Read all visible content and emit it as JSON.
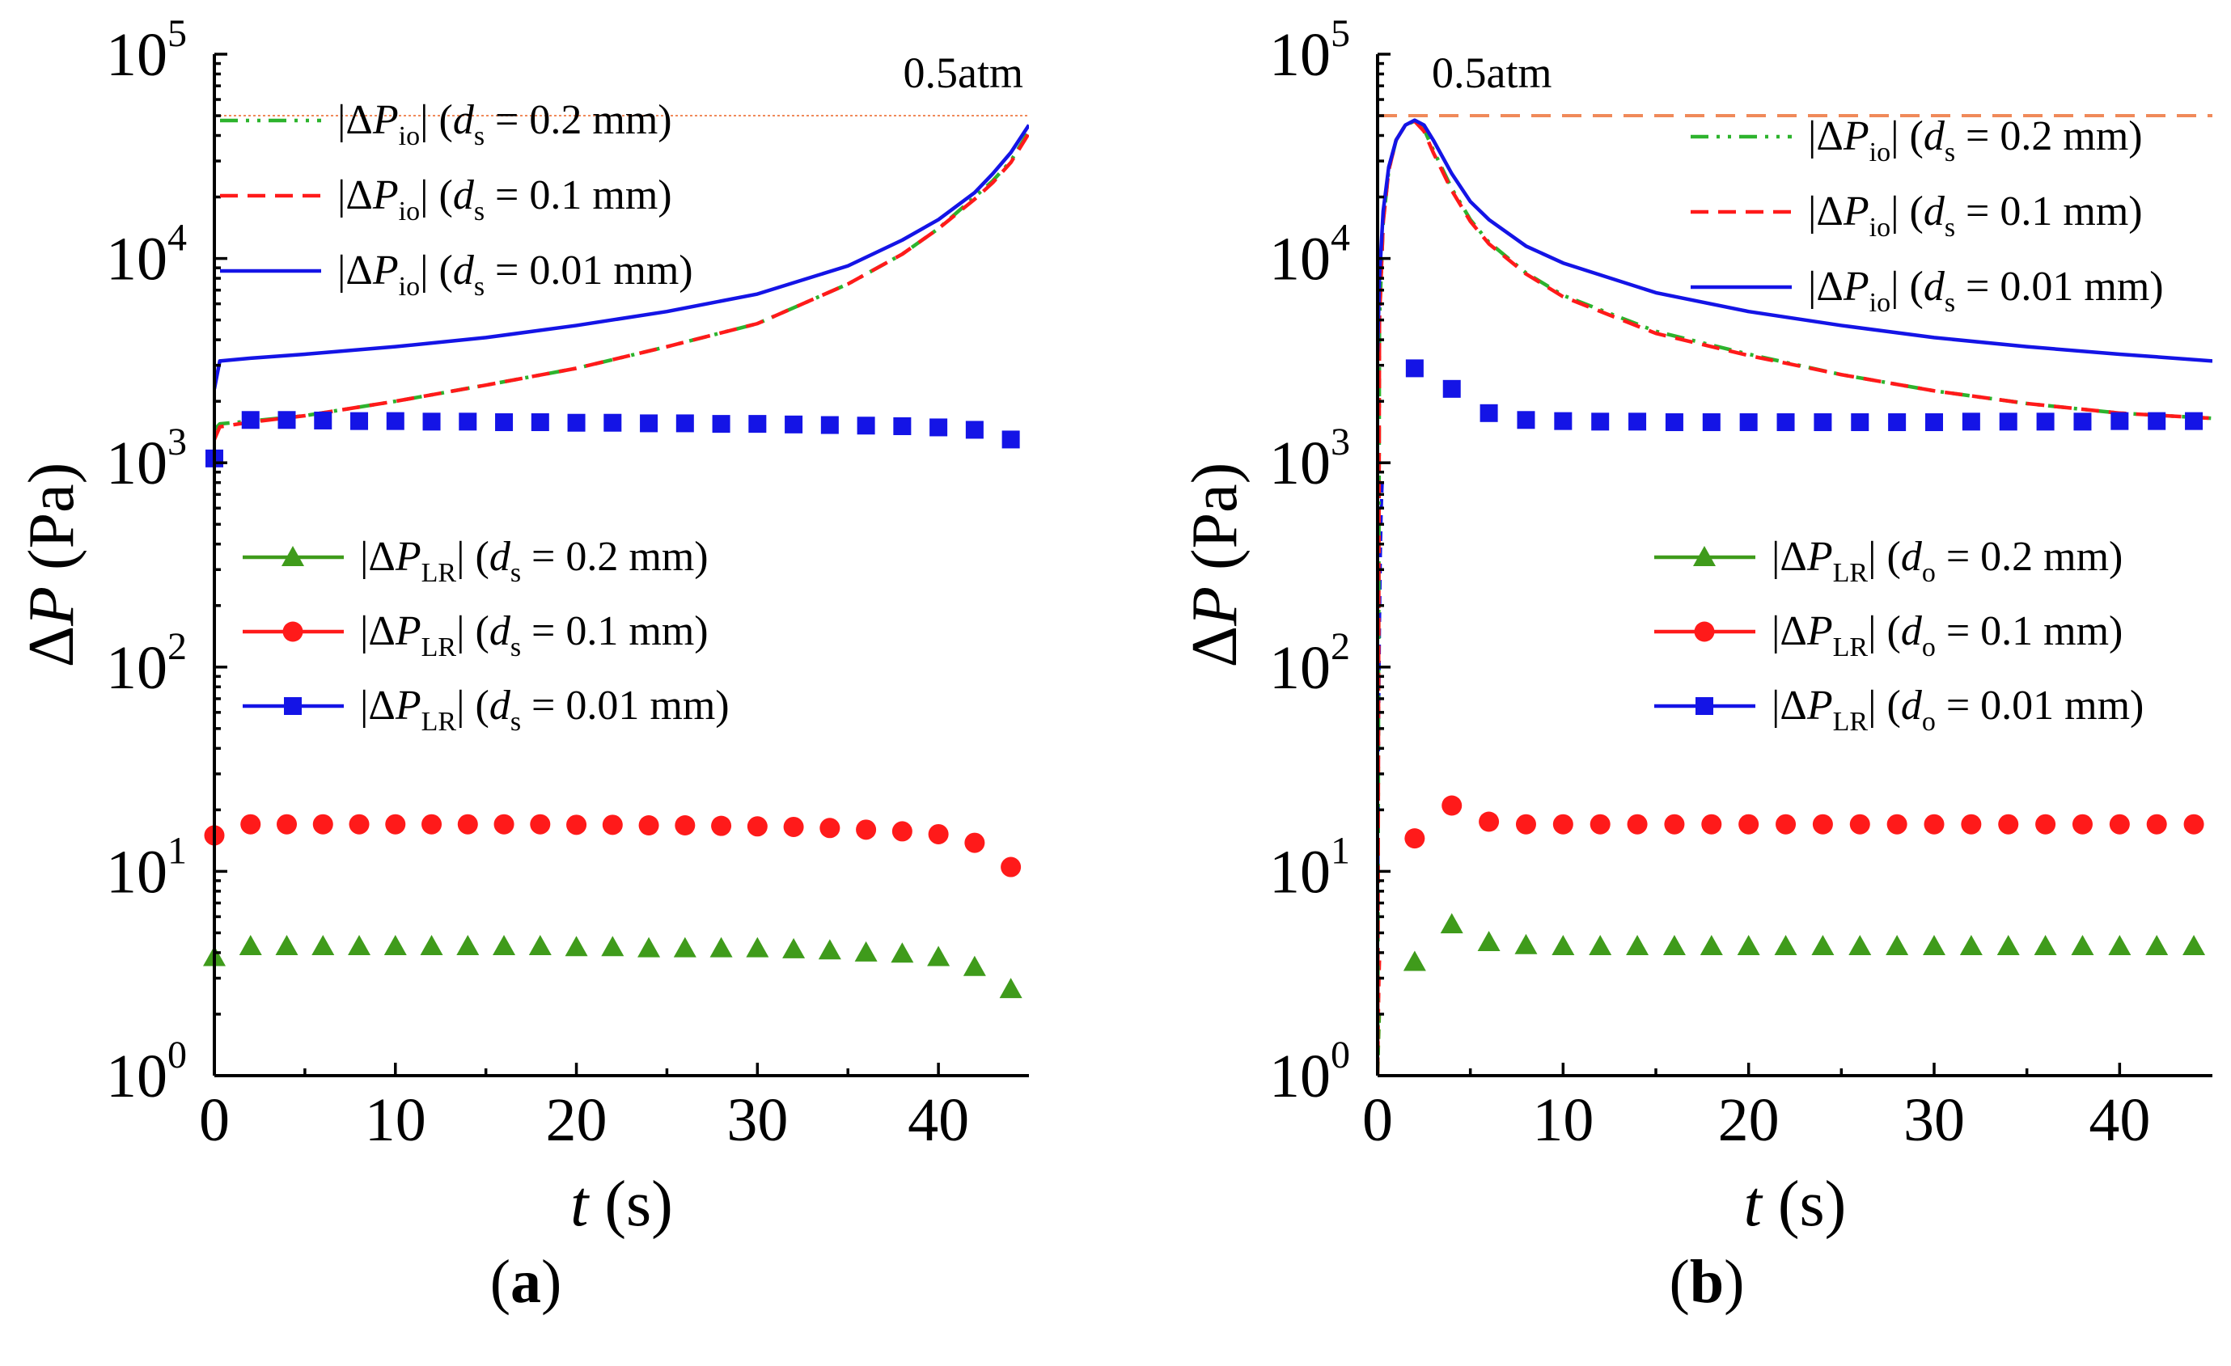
{
  "chart_data": [
    {
      "type": "line",
      "panel_label": "(a)",
      "panel_letter": "a",
      "xlabel": "t (s)",
      "xlabel_var": "t",
      "xlabel_unit": "(s)",
      "ylabel": "ΔP (Pa)",
      "ylabel_var": "ΔP",
      "ylabel_unit": "(Pa)",
      "yscale": "log",
      "xlim": [
        0,
        45
      ],
      "ylim": [
        1,
        100000
      ],
      "x_ticks": [
        0,
        10,
        20,
        30,
        40
      ],
      "x_tick_labels": [
        "0",
        "10",
        "20",
        "30",
        "40"
      ],
      "y_ticks": [
        1,
        10,
        100,
        1000,
        10000,
        100000
      ],
      "y_tick_labels": [
        {
          "base": "10",
          "exp": "0"
        },
        {
          "base": "10",
          "exp": "1"
        },
        {
          "base": "10",
          "exp": "2"
        },
        {
          "base": "10",
          "exp": "3"
        },
        {
          "base": "10",
          "exp": "4"
        },
        {
          "base": "10",
          "exp": "5"
        }
      ],
      "reference_line": {
        "label": "0.5atm",
        "value": 50000,
        "color": "#f08a5a"
      },
      "line_series": [
        {
          "name": "|ΔPio| (ds = 0.2 mm)",
          "sub": "io",
          "dvar": "s",
          "value_text": "0.2 mm",
          "color": "#2db32d",
          "dash": "dashdot",
          "x": [
            0,
            0.3,
            2,
            5,
            10,
            15,
            20,
            25,
            30,
            35,
            38,
            40,
            42,
            43,
            44,
            45
          ],
          "y": [
            1450,
            1550,
            1600,
            1700,
            2000,
            2400,
            2900,
            3700,
            4800,
            7500,
            10500,
            14000,
            20000,
            24000,
            30000,
            42000
          ]
        },
        {
          "name": "|ΔPio| (ds = 0.1 mm)",
          "sub": "io",
          "dvar": "s",
          "value_text": "0.1 mm",
          "color": "#ff1a1a",
          "dash": "dashed",
          "x": [
            0,
            0.3,
            2,
            5,
            10,
            15,
            20,
            25,
            30,
            35,
            38,
            40,
            42,
            43,
            44,
            45
          ],
          "y": [
            1300,
            1500,
            1580,
            1700,
            2000,
            2400,
            2900,
            3700,
            4800,
            7500,
            10500,
            14000,
            19500,
            23500,
            29500,
            41000
          ]
        },
        {
          "name": "|ΔPio| (ds = 0.01 mm)",
          "sub": "io",
          "dvar": "s",
          "value_text": "0.01 mm",
          "color": "#1414e6",
          "dash": "solid",
          "x": [
            0,
            0.3,
            2,
            5,
            10,
            15,
            20,
            25,
            30,
            35,
            38,
            40,
            42,
            43,
            44,
            45
          ],
          "y": [
            2300,
            3150,
            3250,
            3400,
            3700,
            4100,
            4700,
            5500,
            6700,
            9200,
            12300,
            15500,
            21000,
            26000,
            33000,
            45000
          ]
        }
      ],
      "marker_series": [
        {
          "name": "|ΔPLR| (ds = 0.2 mm)",
          "sub": "LR",
          "dvar": "s",
          "value_text": "0.2 mm",
          "color": "#3f9b1b",
          "marker": "triangle",
          "x": [
            0,
            2,
            4,
            6,
            8,
            10,
            12,
            14,
            16,
            18,
            20,
            22,
            24,
            26,
            28,
            30,
            32,
            34,
            36,
            38,
            40,
            42,
            44
          ],
          "y": [
            3.8,
            4.3,
            4.3,
            4.3,
            4.3,
            4.3,
            4.3,
            4.3,
            4.3,
            4.3,
            4.25,
            4.25,
            4.2,
            4.2,
            4.2,
            4.2,
            4.15,
            4.1,
            4.0,
            3.95,
            3.8,
            3.4,
            2.65
          ]
        },
        {
          "name": "|ΔPLR| (ds = 0.1 mm)",
          "sub": "LR",
          "dvar": "s",
          "value_text": "0.1 mm",
          "color": "#ff1a1a",
          "marker": "circle",
          "x": [
            0,
            2,
            4,
            6,
            8,
            10,
            12,
            14,
            16,
            18,
            20,
            22,
            24,
            26,
            28,
            30,
            32,
            34,
            36,
            38,
            40,
            42,
            44
          ],
          "y": [
            15,
            17,
            17,
            17,
            17,
            17,
            17,
            17,
            17,
            17,
            16.9,
            16.9,
            16.8,
            16.8,
            16.7,
            16.6,
            16.5,
            16.3,
            16.0,
            15.7,
            15.2,
            13.8,
            10.5
          ]
        },
        {
          "name": "|ΔPLR| (ds = 0.01 mm)",
          "sub": "LR",
          "dvar": "s",
          "value_text": "0.01 mm",
          "color": "#1414e6",
          "marker": "square",
          "x": [
            0,
            2,
            4,
            6,
            8,
            10,
            12,
            14,
            16,
            18,
            20,
            22,
            24,
            26,
            28,
            30,
            32,
            34,
            36,
            38,
            40,
            42,
            44
          ],
          "y": [
            1050,
            1620,
            1620,
            1610,
            1600,
            1600,
            1590,
            1590,
            1580,
            1580,
            1570,
            1570,
            1560,
            1560,
            1550,
            1550,
            1540,
            1530,
            1520,
            1510,
            1490,
            1450,
            1300
          ]
        }
      ]
    },
    {
      "type": "line",
      "panel_label": "(b)",
      "panel_letter": "b",
      "xlabel": "t (s)",
      "xlabel_var": "t",
      "xlabel_unit": "(s)",
      "ylabel": "ΔP (Pa)",
      "ylabel_var": "ΔP",
      "ylabel_unit": "(Pa)",
      "yscale": "log",
      "xlim": [
        0,
        45
      ],
      "ylim": [
        1,
        100000
      ],
      "x_ticks": [
        0,
        10,
        20,
        30,
        40
      ],
      "x_tick_labels": [
        "0",
        "10",
        "20",
        "30",
        "40"
      ],
      "y_ticks": [
        1,
        10,
        100,
        1000,
        10000,
        100000
      ],
      "y_tick_labels": [
        {
          "base": "10",
          "exp": "0"
        },
        {
          "base": "10",
          "exp": "1"
        },
        {
          "base": "10",
          "exp": "2"
        },
        {
          "base": "10",
          "exp": "3"
        },
        {
          "base": "10",
          "exp": "4"
        },
        {
          "base": "10",
          "exp": "5"
        }
      ],
      "reference_line": {
        "label": "0.5atm",
        "value": 50000,
        "color": "#f08a5a"
      },
      "line_series": [
        {
          "name": "|ΔPio| (ds = 0.2 mm)",
          "sub": "io",
          "dvar": "s",
          "value_text": "0.2 mm",
          "color": "#2db32d",
          "dash": "dashdot",
          "x": [
            0,
            0.1,
            0.3,
            0.6,
            1.0,
            1.5,
            2.0,
            2.5,
            3.0,
            4.0,
            5.0,
            6.0,
            8.0,
            10,
            15,
            20,
            25,
            30,
            35,
            40,
            45
          ],
          "y": [
            1,
            5000,
            15000,
            27000,
            38000,
            45000,
            47000,
            43000,
            34000,
            22000,
            15500,
            12000,
            8500,
            6600,
            4400,
            3400,
            2700,
            2250,
            1950,
            1750,
            1650
          ]
        },
        {
          "name": "|ΔPio| (ds = 0.1 mm)",
          "sub": "io",
          "dvar": "s",
          "value_text": "0.1 mm",
          "color": "#ff1a1a",
          "dash": "dashed",
          "x": [
            0,
            0.1,
            0.3,
            0.6,
            1.0,
            1.5,
            2.0,
            2.5,
            3.0,
            4.0,
            5.0,
            6.0,
            8.0,
            10,
            15,
            20,
            25,
            30,
            35,
            40,
            45
          ],
          "y": [
            1,
            5000,
            15000,
            27000,
            38000,
            45000,
            47000,
            42000,
            33000,
            21500,
            15200,
            11800,
            8400,
            6500,
            4300,
            3350,
            2700,
            2250,
            1950,
            1750,
            1650
          ]
        },
        {
          "name": "|ΔPio| (ds = 0.01 mm)",
          "sub": "io",
          "dvar": "s",
          "value_text": "0.01 mm",
          "color": "#1414e6",
          "dash": "solid",
          "x": [
            0,
            0.1,
            0.3,
            0.6,
            1.0,
            1.5,
            2.0,
            2.5,
            3.0,
            4.0,
            5.0,
            6.0,
            8.0,
            10,
            15,
            20,
            25,
            30,
            35,
            40,
            45
          ],
          "y": [
            3500,
            8000,
            17000,
            28000,
            38000,
            45000,
            47500,
            45000,
            38000,
            26000,
            19000,
            15500,
            11500,
            9500,
            6800,
            5500,
            4700,
            4100,
            3700,
            3400,
            3150
          ]
        }
      ],
      "marker_series": [
        {
          "name": "|ΔPLR| (do = 0.2 mm)",
          "sub": "LR",
          "dvar": "o",
          "value_text": "0.2 mm",
          "color": "#3f9b1b",
          "marker": "triangle",
          "x": [
            2,
            4,
            6,
            8,
            10,
            12,
            14,
            16,
            18,
            20,
            22,
            24,
            26,
            28,
            30,
            32,
            34,
            36,
            38,
            40,
            42,
            44
          ],
          "y": [
            3.6,
            5.5,
            4.5,
            4.35,
            4.3,
            4.3,
            4.3,
            4.3,
            4.3,
            4.3,
            4.3,
            4.3,
            4.3,
            4.3,
            4.3,
            4.3,
            4.3,
            4.3,
            4.3,
            4.3,
            4.3,
            4.3
          ]
        },
        {
          "name": "|ΔPLR| (do = 0.1 mm)",
          "sub": "LR",
          "dvar": "o",
          "value_text": "0.1 mm",
          "color": "#ff1a1a",
          "marker": "circle",
          "x": [
            2,
            4,
            6,
            8,
            10,
            12,
            14,
            16,
            18,
            20,
            22,
            24,
            26,
            28,
            30,
            32,
            34,
            36,
            38,
            40,
            42,
            44
          ],
          "y": [
            14.5,
            21,
            17.5,
            17,
            17,
            17,
            17,
            17,
            17,
            17,
            17,
            17,
            17,
            17,
            17,
            17,
            17,
            17,
            17,
            17,
            17,
            17
          ]
        },
        {
          "name": "|ΔPLR| (do = 0.01 mm)",
          "sub": "LR",
          "dvar": "o",
          "value_text": "0.01 mm",
          "color": "#1414e6",
          "marker": "square",
          "x": [
            2,
            4,
            6,
            8,
            10,
            12,
            14,
            16,
            18,
            20,
            22,
            24,
            26,
            28,
            30,
            32,
            34,
            36,
            38,
            40,
            42,
            44
          ],
          "y": [
            2900,
            2300,
            1750,
            1620,
            1600,
            1590,
            1590,
            1580,
            1580,
            1580,
            1580,
            1580,
            1580,
            1580,
            1580,
            1590,
            1590,
            1590,
            1590,
            1600,
            1600,
            1600
          ]
        }
      ],
      "startup_transients": [
        {
          "color": "#1414e6",
          "x": [
            0.02,
            0.05,
            0.1,
            0.15,
            0.2,
            0.25
          ],
          "y": [
            9,
            40,
            150,
            350,
            600,
            800
          ]
        },
        {
          "color": "#ff1a1a",
          "x": [
            0.02,
            0.04,
            0.08,
            0.12
          ],
          "y": [
            1.1,
            1.8,
            3.0,
            4.0
          ]
        },
        {
          "color": "#3f9b1b",
          "x": [
            0.02,
            0.05,
            0.1
          ],
          "y": [
            1.05,
            1.4,
            2.0
          ]
        }
      ]
    }
  ]
}
